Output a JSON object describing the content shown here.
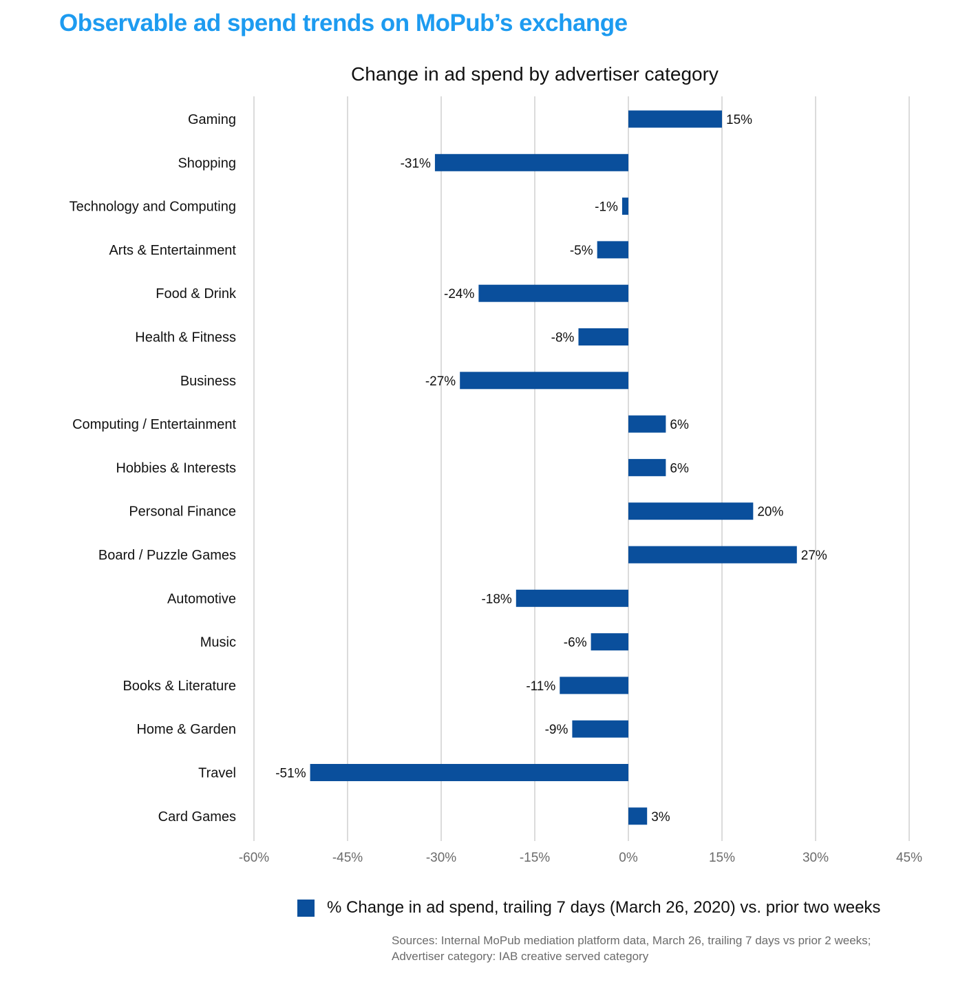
{
  "page": {
    "title": "Observable ad spend trends on MoPub’s exchange"
  },
  "sources": {
    "line1": "Sources: Internal MoPub mediation platform data, March 26, trailing 7 days vs prior 2 weeks;",
    "line2": "Advertiser category: IAB creative served category"
  },
  "colors": {
    "title": "#1d9bf0",
    "bar": "#0a4f9c",
    "grid": "#cfcfcf",
    "tick": "#6b6b6b",
    "text": "#111111"
  },
  "chart_data": {
    "type": "bar",
    "orientation": "horizontal",
    "title": "Change in ad spend by advertiser category",
    "categories": [
      "Gaming",
      "Shopping",
      "Technology and Computing",
      "Arts & Entertainment",
      "Food & Drink",
      "Health & Fitness",
      "Business",
      "Computing / Entertainment",
      "Hobbies & Interests",
      "Personal Finance",
      "Board / Puzzle Games",
      "Automotive",
      "Music",
      "Books & Literature",
      "Home & Garden",
      "Travel",
      "Card Games"
    ],
    "series": [
      {
        "name": "% Change in ad spend, trailing 7 days (March 26, 2020) vs. prior two weeks",
        "values": [
          15,
          -31,
          -1,
          -5,
          -24,
          -8,
          -27,
          6,
          6,
          20,
          27,
          -18,
          -6,
          -11,
          -9,
          -51,
          3
        ],
        "labels": [
          "15%",
          "-31%",
          "-1%",
          "-5%",
          "-24%",
          "-8%",
          "-27%",
          "6%",
          "6%",
          "20%",
          "27%",
          "-18%",
          "-6%",
          "-11%",
          "-9%",
          "-51%",
          "3%"
        ]
      }
    ],
    "xlim": [
      -60,
      45
    ],
    "xticks": [
      -60,
      -45,
      -30,
      -15,
      0,
      15,
      30,
      45
    ],
    "xtick_labels": [
      "-60%",
      "-45%",
      "-30%",
      "-15%",
      "0%",
      "15%",
      "30%",
      "45%"
    ],
    "grid": true,
    "legend_position": "bottom-right"
  }
}
